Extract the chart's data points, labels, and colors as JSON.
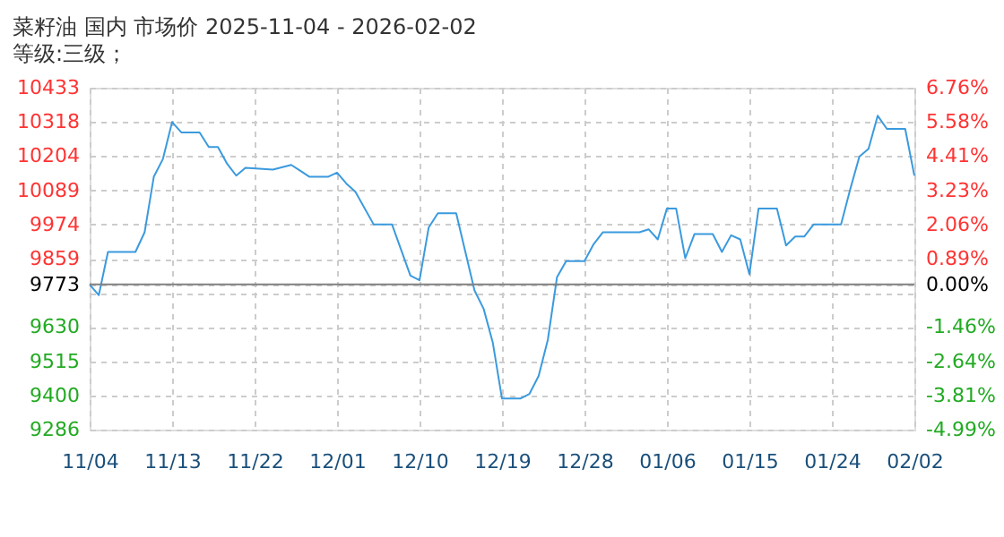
{
  "chart_data": {
    "type": "line",
    "title": "菜籽油 国内 市场价 2025-11-04 - 2026-02-02",
    "subtitle": "等级:三级；",
    "x": [
      "2025-11-04",
      "2025-11-05",
      "2025-11-06",
      "2025-11-09",
      "2025-11-10",
      "2025-11-11",
      "2025-11-12",
      "2025-11-13",
      "2025-11-14",
      "2025-11-16",
      "2025-11-17",
      "2025-11-18",
      "2025-11-19",
      "2025-11-20",
      "2025-11-21",
      "2025-11-24",
      "2025-11-26",
      "2025-11-27",
      "2025-11-28",
      "2025-11-30",
      "2025-12-01",
      "2025-12-02",
      "2025-12-03",
      "2025-12-05",
      "2025-12-07",
      "2025-12-09",
      "2025-12-10",
      "2025-12-11",
      "2025-12-12",
      "2025-12-14",
      "2025-12-16",
      "2025-12-17",
      "2025-12-18",
      "2025-12-19",
      "2025-12-21",
      "2025-12-22",
      "2025-12-23",
      "2025-12-24",
      "2025-12-25",
      "2025-12-26",
      "2025-12-28",
      "2025-12-29",
      "2025-12-30",
      "2026-01-03",
      "2026-01-04",
      "2026-01-05",
      "2026-01-06",
      "2026-01-07",
      "2026-01-08",
      "2026-01-09",
      "2026-01-11",
      "2026-01-12",
      "2026-01-13",
      "2026-01-14",
      "2026-01-15",
      "2026-01-16",
      "2026-01-18",
      "2026-01-19",
      "2026-01-20",
      "2026-01-21",
      "2026-01-22",
      "2026-01-25",
      "2026-01-26",
      "2026-01-27",
      "2026-01-28",
      "2026-01-29",
      "2026-01-30",
      "2026-02-01",
      "2026-02-02"
    ],
    "series": [
      {
        "color": "#3b9ade",
        "values": [
          9773,
          9737,
          9882,
          9882,
          9948,
          10134,
          10194,
          10318,
          10283,
          10283,
          10234,
          10234,
          10178,
          10138,
          10164,
          10158,
          10174,
          10154,
          10134,
          10134,
          10148,
          10112,
          10084,
          9974,
          9974,
          9803,
          9787,
          9964,
          10012,
          10012,
          9753,
          9691,
          9577,
          9390,
          9390,
          9406,
          9466,
          9587,
          9797,
          9851,
          9851,
          9908,
          9948,
          9948,
          9958,
          9924,
          10028,
          10028,
          9861,
          9942,
          9942,
          9882,
          9938,
          9924,
          9807,
          10028,
          10028,
          9904,
          9934,
          9934,
          9974,
          9974,
          10092,
          10202,
          10228,
          10339,
          10295,
          10295,
          10138
        ]
      }
    ],
    "xlim": [
      "2025-11-04",
      "2026-02-02"
    ],
    "xticks": [
      {
        "value": "2025-11-04",
        "label": "11/04"
      },
      {
        "value": "2025-11-13",
        "label": "11/13"
      },
      {
        "value": "2025-11-22",
        "label": "11/22"
      },
      {
        "value": "2025-12-01",
        "label": "12/01"
      },
      {
        "value": "2025-12-10",
        "label": "12/10"
      },
      {
        "value": "2025-12-19",
        "label": "12/19"
      },
      {
        "value": "2025-12-28",
        "label": "12/28"
      },
      {
        "value": "2026-01-06",
        "label": "01/06"
      },
      {
        "value": "2026-01-15",
        "label": "01/15"
      },
      {
        "value": "2026-01-24",
        "label": "01/24"
      },
      {
        "value": "2026-02-02",
        "label": "02/02"
      }
    ],
    "ylim": [
      9286,
      10433
    ],
    "yticks": [
      9286,
      9400,
      9515,
      9630,
      {
        "value": 9744,
        "label": null
      },
      9773,
      9859,
      9974,
      10089,
      10204,
      10318,
      10433
    ],
    "y2lim": [
      -4.99,
      6.76
    ],
    "y2ticks": [
      {
        "value": -4.99,
        "label": "-4.99%"
      },
      {
        "value": -3.81,
        "label": "-3.81%"
      },
      {
        "value": -2.64,
        "label": "-2.64%"
      },
      {
        "value": -1.46,
        "label": "-1.46%"
      },
      {
        "value": 0,
        "label": "0.00%"
      },
      {
        "value": 0.89,
        "label": "0.89%"
      },
      {
        "value": 2.06,
        "label": "2.06%"
      },
      {
        "value": 3.23,
        "label": "3.23%"
      },
      {
        "value": 4.41,
        "label": "4.41%"
      },
      {
        "value": 5.58,
        "label": "5.58%"
      },
      {
        "value": 6.76,
        "label": "6.76%"
      }
    ],
    "ref_lines": [
      {
        "axis": "y",
        "value": 9773,
        "color": "#808080"
      }
    ],
    "grid": true,
    "marker": "none",
    "line_style": "solid"
  }
}
